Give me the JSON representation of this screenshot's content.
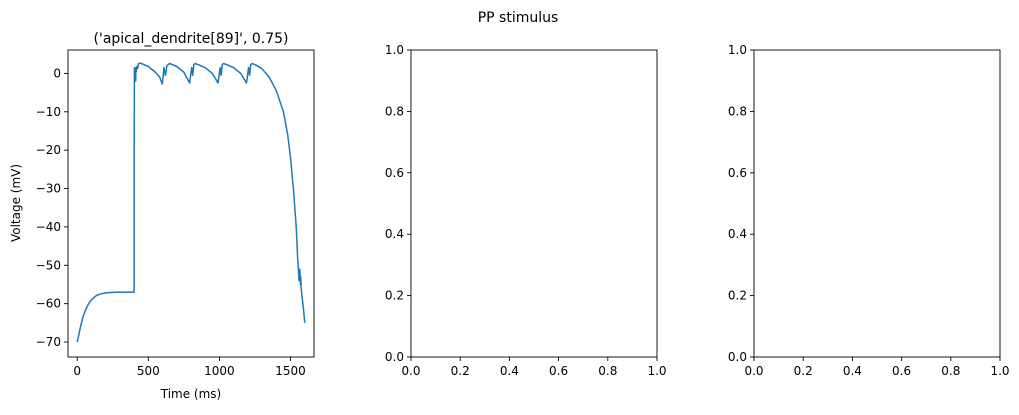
{
  "suptitle": "PP stimulus",
  "chart_data": [
    {
      "type": "line",
      "title": "('apical_dendrite[89]', 0.75)",
      "xlabel": "Time (ms)",
      "ylabel": "Voltage (mV)",
      "xlim": [
        -65,
        1665
      ],
      "ylim": [
        -73.9,
        6.1
      ],
      "xticks": [
        0,
        500,
        1000,
        1500
      ],
      "xtick_labels": [
        "0",
        "500",
        "1000",
        "1500"
      ],
      "yticks": [
        0,
        -10,
        -20,
        -30,
        -40,
        -50,
        -60,
        -70
      ],
      "ytick_labels": [
        "0",
        "−10",
        "−20",
        "−30",
        "−40",
        "−50",
        "−60",
        "−70"
      ],
      "grid": false,
      "series": [
        {
          "color": "#1f77b4",
          "x": [
            0,
            20,
            40,
            60,
            80,
            100,
            130,
            160,
            200,
            250,
            300,
            350,
            400,
            400.5,
            402,
            405,
            408,
            410,
            411,
            412,
            413,
            415,
            420,
            425,
            430,
            440,
            450,
            500,
            550,
            580,
            598,
            610,
            620,
            630,
            640,
            650,
            700,
            750,
            790,
            805,
            812,
            820,
            830,
            840,
            850,
            900,
            950,
            990,
            1005,
            1012,
            1020,
            1030,
            1040,
            1050,
            1100,
            1150,
            1190,
            1205,
            1212,
            1220,
            1230,
            1240,
            1250,
            1300,
            1350,
            1400,
            1450,
            1480,
            1500,
            1520,
            1540,
            1550,
            1560,
            1565,
            1570,
            1572,
            1575,
            1580,
            1590,
            1600
          ],
          "y": [
            -70,
            -66.5,
            -63.5,
            -61.5,
            -60,
            -59,
            -58,
            -57.5,
            -57.2,
            -57.05,
            -57,
            -57,
            -57,
            -20,
            1.5,
            -1,
            1,
            0,
            -2,
            0.5,
            1.5,
            0.5,
            1.8,
            1.3,
            2.5,
            2.7,
            2.6,
            1.8,
            0.3,
            -1,
            -2.8,
            1.5,
            -0.5,
            2,
            2.3,
            2.6,
            1.8,
            0.3,
            -2.5,
            1.5,
            -0.5,
            2.3,
            2.6,
            2.4,
            2.3,
            1.5,
            0,
            -2.5,
            1.5,
            -0.5,
            2.3,
            2.6,
            2.4,
            2.3,
            1.5,
            0,
            -2.5,
            1.5,
            -0.5,
            2.3,
            2.6,
            2.4,
            2.3,
            1.2,
            -1,
            -4.5,
            -10,
            -16,
            -22,
            -30,
            -40,
            -48,
            -54,
            -51,
            -55,
            -53,
            -56,
            -58,
            -61,
            -65
          ]
        }
      ]
    },
    {
      "type": "line",
      "title": "",
      "xlim": [
        0,
        1
      ],
      "ylim": [
        0,
        1
      ],
      "xticks": [
        0,
        0.2,
        0.4,
        0.6,
        0.8,
        1.0
      ],
      "xtick_labels": [
        "0.0",
        "0.2",
        "0.4",
        "0.6",
        "0.8",
        "1.0"
      ],
      "yticks": [
        0,
        0.2,
        0.4,
        0.6,
        0.8,
        1.0
      ],
      "ytick_labels": [
        "0.0",
        "0.2",
        "0.4",
        "0.6",
        "0.8",
        "1.0"
      ],
      "series": []
    },
    {
      "type": "line",
      "title": "",
      "xlim": [
        0,
        1
      ],
      "ylim": [
        0,
        1
      ],
      "xticks": [
        0,
        0.2,
        0.4,
        0.6,
        0.8,
        1.0
      ],
      "xtick_labels": [
        "0.0",
        "0.2",
        "0.4",
        "0.6",
        "0.8",
        "1.0"
      ],
      "yticks": [
        0,
        0.2,
        0.4,
        0.6,
        0.8,
        1.0
      ],
      "ytick_labels": [
        "0.0",
        "0.2",
        "0.4",
        "0.6",
        "0.8",
        "1.0"
      ],
      "series": []
    }
  ]
}
